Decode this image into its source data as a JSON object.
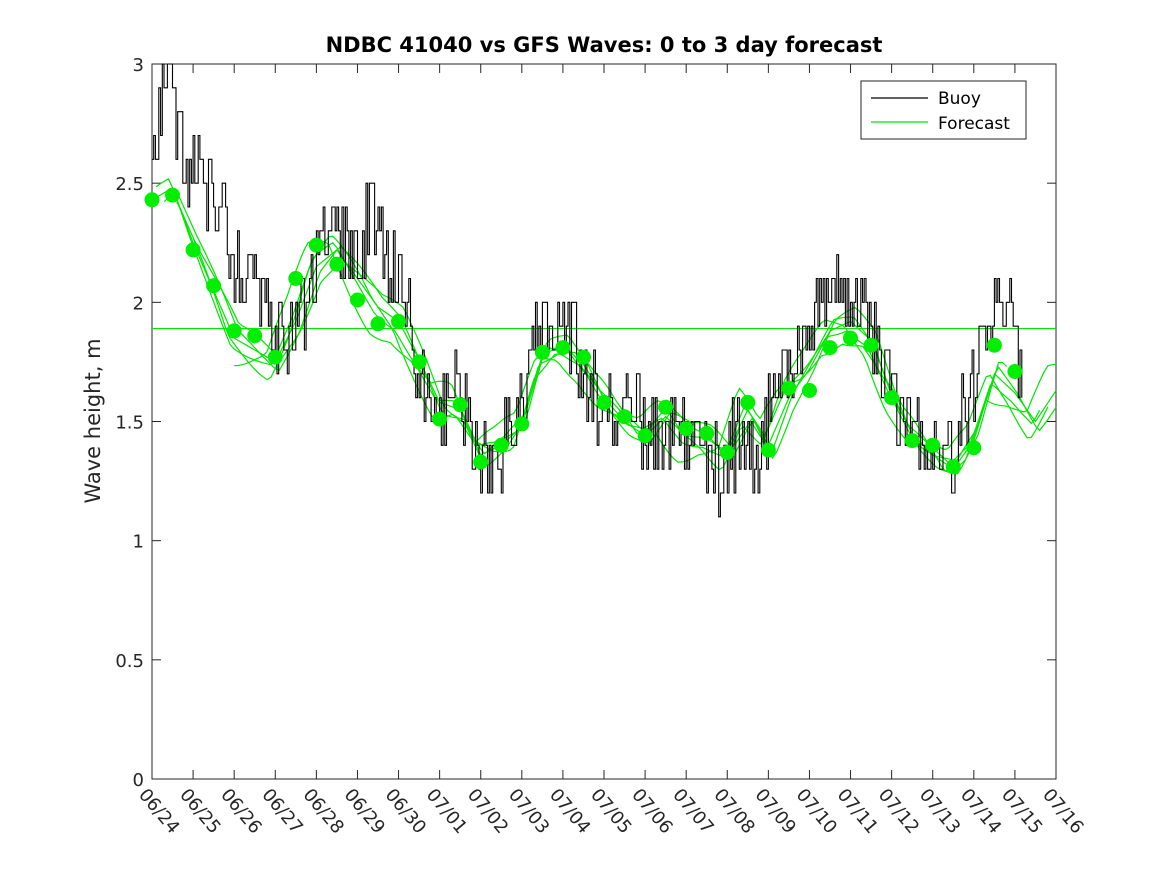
{
  "chart_data": {
    "type": "line",
    "title": "NDBC 41040 vs GFS Waves: 0 to 3 day forecast",
    "ylabel": "Wave height, m",
    "xlabel": "",
    "ylim": [
      0,
      3
    ],
    "yticks": [
      0,
      0.5,
      1,
      1.5,
      2,
      2.5,
      3
    ],
    "xlim_days": [
      0,
      22
    ],
    "xtick_labels": [
      "06/24",
      "06/25",
      "06/26",
      "06/27",
      "06/28",
      "06/29",
      "06/30",
      "07/01",
      "07/02",
      "07/03",
      "07/04",
      "07/05",
      "07/06",
      "07/07",
      "07/08",
      "07/09",
      "07/10",
      "07/11",
      "07/12",
      "07/13",
      "07/14",
      "07/15",
      "07/16"
    ],
    "grid": false,
    "legend": {
      "position": "top-right",
      "entries": [
        "Buoy",
        "Forecast"
      ]
    },
    "colors": {
      "buoy": "#000000",
      "forecast": "#00e600",
      "marker": "#00ee00"
    },
    "reference_line": {
      "y": 1.89
    },
    "buoy_anchors": [
      [
        0.0,
        2.7
      ],
      [
        0.2,
        2.85
      ],
      [
        0.35,
        2.95
      ],
      [
        0.6,
        2.7
      ],
      [
        0.8,
        2.55
      ],
      [
        1.0,
        2.6
      ],
      [
        1.2,
        2.5
      ],
      [
        1.4,
        2.45
      ],
      [
        1.6,
        2.4
      ],
      [
        1.8,
        2.3
      ],
      [
        2.0,
        2.2
      ],
      [
        2.2,
        2.15
      ],
      [
        2.5,
        2.05
      ],
      [
        2.8,
        2.0
      ],
      [
        3.0,
        1.9
      ],
      [
        3.2,
        1.8
      ],
      [
        3.4,
        1.85
      ],
      [
        3.6,
        1.95
      ],
      [
        3.8,
        2.05
      ],
      [
        4.0,
        2.15
      ],
      [
        4.2,
        2.25
      ],
      [
        4.4,
        2.3
      ],
      [
        4.6,
        2.25
      ],
      [
        4.8,
        2.2
      ],
      [
        5.0,
        2.2
      ],
      [
        5.2,
        2.3
      ],
      [
        5.4,
        2.35
      ],
      [
        5.6,
        2.25
      ],
      [
        5.8,
        2.15
      ],
      [
        6.0,
        2.1
      ],
      [
        6.2,
        2.0
      ],
      [
        6.4,
        1.8
      ],
      [
        6.6,
        1.65
      ],
      [
        6.8,
        1.55
      ],
      [
        7.0,
        1.5
      ],
      [
        7.2,
        1.55
      ],
      [
        7.4,
        1.65
      ],
      [
        7.6,
        1.55
      ],
      [
        7.8,
        1.45
      ],
      [
        8.0,
        1.35
      ],
      [
        8.2,
        1.35
      ],
      [
        8.4,
        1.35
      ],
      [
        8.6,
        1.4
      ],
      [
        8.8,
        1.45
      ],
      [
        9.0,
        1.55
      ],
      [
        9.2,
        1.75
      ],
      [
        9.4,
        1.9
      ],
      [
        9.6,
        1.9
      ],
      [
        9.8,
        1.85
      ],
      [
        10.0,
        1.85
      ],
      [
        10.2,
        1.9
      ],
      [
        10.4,
        1.8
      ],
      [
        10.6,
        1.65
      ],
      [
        10.8,
        1.6
      ],
      [
        11.0,
        1.55
      ],
      [
        11.2,
        1.5
      ],
      [
        11.4,
        1.5
      ],
      [
        11.6,
        1.55
      ],
      [
        11.8,
        1.5
      ],
      [
        12.0,
        1.45
      ],
      [
        12.2,
        1.45
      ],
      [
        12.4,
        1.4
      ],
      [
        12.6,
        1.45
      ],
      [
        12.8,
        1.5
      ],
      [
        13.0,
        1.45
      ],
      [
        13.2,
        1.4
      ],
      [
        13.4,
        1.4
      ],
      [
        13.6,
        1.3
      ],
      [
        13.8,
        1.25
      ],
      [
        14.0,
        1.35
      ],
      [
        14.2,
        1.4
      ],
      [
        14.4,
        1.45
      ],
      [
        14.6,
        1.4
      ],
      [
        14.8,
        1.4
      ],
      [
        15.0,
        1.5
      ],
      [
        15.2,
        1.6
      ],
      [
        15.4,
        1.7
      ],
      [
        15.6,
        1.75
      ],
      [
        15.8,
        1.85
      ],
      [
        16.0,
        1.9
      ],
      [
        16.2,
        1.95
      ],
      [
        16.4,
        2.0
      ],
      [
        16.6,
        2.05
      ],
      [
        16.8,
        2.05
      ],
      [
        17.0,
        2.0
      ],
      [
        17.2,
        2.0
      ],
      [
        17.4,
        1.9
      ],
      [
        17.6,
        1.8
      ],
      [
        17.8,
        1.7
      ],
      [
        18.0,
        1.6
      ],
      [
        18.2,
        1.55
      ],
      [
        18.4,
        1.5
      ],
      [
        18.6,
        1.45
      ],
      [
        18.8,
        1.4
      ],
      [
        19.0,
        1.35
      ],
      [
        19.2,
        1.3
      ],
      [
        19.4,
        1.3
      ],
      [
        19.6,
        1.4
      ],
      [
        19.8,
        1.55
      ],
      [
        20.0,
        1.7
      ],
      [
        20.2,
        1.85
      ],
      [
        20.4,
        1.95
      ],
      [
        20.6,
        2.0
      ],
      [
        20.8,
        1.95
      ],
      [
        21.0,
        1.85
      ],
      [
        21.2,
        1.75
      ]
    ],
    "forecast_anchors": [
      [
        0.0,
        2.43
      ],
      [
        0.5,
        2.48
      ],
      [
        1.0,
        2.25
      ],
      [
        1.5,
        2.05
      ],
      [
        2.0,
        1.85
      ],
      [
        2.5,
        1.8
      ],
      [
        3.0,
        1.75
      ],
      [
        3.5,
        1.92
      ],
      [
        4.0,
        2.15
      ],
      [
        4.5,
        2.22
      ],
      [
        5.0,
        2.1
      ],
      [
        5.5,
        1.98
      ],
      [
        6.0,
        1.92
      ],
      [
        6.5,
        1.76
      ],
      [
        7.0,
        1.58
      ],
      [
        7.5,
        1.55
      ],
      [
        8.0,
        1.36
      ],
      [
        8.5,
        1.4
      ],
      [
        9.0,
        1.48
      ],
      [
        9.5,
        1.78
      ],
      [
        10.0,
        1.82
      ],
      [
        10.5,
        1.74
      ],
      [
        11.0,
        1.6
      ],
      [
        11.5,
        1.5
      ],
      [
        12.0,
        1.44
      ],
      [
        12.5,
        1.52
      ],
      [
        13.0,
        1.44
      ],
      [
        13.5,
        1.43
      ],
      [
        14.0,
        1.37
      ],
      [
        14.5,
        1.55
      ],
      [
        15.0,
        1.4
      ],
      [
        15.5,
        1.6
      ],
      [
        16.0,
        1.72
      ],
      [
        16.5,
        1.88
      ],
      [
        17.0,
        1.92
      ],
      [
        17.5,
        1.84
      ],
      [
        18.0,
        1.62
      ],
      [
        18.5,
        1.45
      ],
      [
        19.0,
        1.36
      ],
      [
        19.5,
        1.3
      ],
      [
        20.0,
        1.42
      ],
      [
        20.5,
        1.7
      ],
      [
        21.0,
        1.62
      ],
      [
        21.5,
        1.5
      ],
      [
        22.0,
        1.63
      ]
    ],
    "markers": [
      [
        0.0,
        2.43
      ],
      [
        0.5,
        2.45
      ],
      [
        1.0,
        2.22
      ],
      [
        1.5,
        2.07
      ],
      [
        2.0,
        1.88
      ],
      [
        2.5,
        1.86
      ],
      [
        3.0,
        1.77
      ],
      [
        3.5,
        2.1
      ],
      [
        4.0,
        2.24
      ],
      [
        4.5,
        2.16
      ],
      [
        5.0,
        2.01
      ],
      [
        5.5,
        1.91
      ],
      [
        6.0,
        1.92
      ],
      [
        6.5,
        1.75
      ],
      [
        7.0,
        1.51
      ],
      [
        7.5,
        1.57
      ],
      [
        8.0,
        1.33
      ],
      [
        8.5,
        1.4
      ],
      [
        9.0,
        1.49
      ],
      [
        9.5,
        1.79
      ],
      [
        10.0,
        1.81
      ],
      [
        10.5,
        1.77
      ],
      [
        11.0,
        1.58
      ],
      [
        11.5,
        1.52
      ],
      [
        12.0,
        1.44
      ],
      [
        12.5,
        1.56
      ],
      [
        13.0,
        1.47
      ],
      [
        13.5,
        1.45
      ],
      [
        14.0,
        1.37
      ],
      [
        14.5,
        1.58
      ],
      [
        15.0,
        1.38
      ],
      [
        15.5,
        1.64
      ],
      [
        16.0,
        1.63
      ],
      [
        16.5,
        1.81
      ],
      [
        17.0,
        1.85
      ],
      [
        17.5,
        1.82
      ],
      [
        18.0,
        1.6
      ],
      [
        18.5,
        1.42
      ],
      [
        19.0,
        1.4
      ],
      [
        19.5,
        1.31
      ],
      [
        20.0,
        1.39
      ],
      [
        20.5,
        1.82
      ],
      [
        21.0,
        1.71
      ]
    ]
  }
}
